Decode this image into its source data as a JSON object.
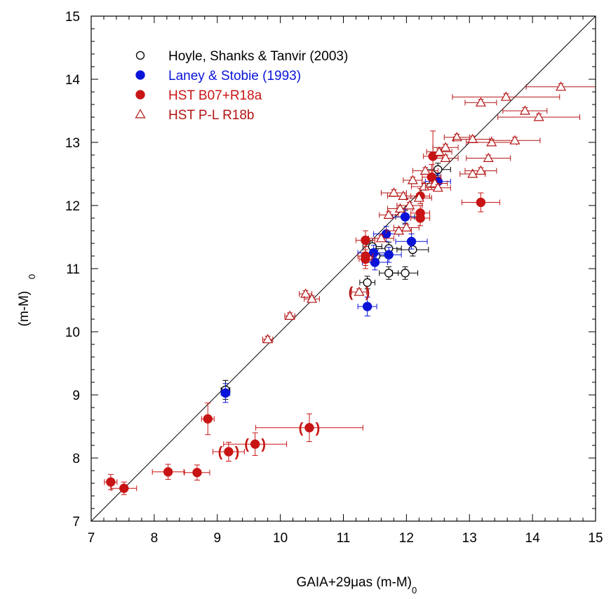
{
  "chart_data": {
    "type": "scatter",
    "title": "",
    "xlabel": "GAIA+29μas (m-M)",
    "xlabel_sub": "0",
    "ylabel": "(m-M)",
    "ylabel_sub": "0",
    "xlim": [
      7,
      15
    ],
    "ylim": [
      7,
      15
    ],
    "xticks": [
      "7",
      "8",
      "9",
      "10",
      "11",
      "12",
      "13",
      "14",
      "15"
    ],
    "yticks": [
      "7",
      "8",
      "9",
      "10",
      "11",
      "12",
      "13",
      "14",
      "15"
    ],
    "reference_line": "y = x",
    "grid": false,
    "legend_position": "top-left",
    "series": [
      {
        "name": "Hoyle, Shanks & Tanvir (2003)",
        "marker": "open-circle",
        "color": "#000000",
        "points": [
          {
            "x": 9.13,
            "y": 9.08,
            "xerr": 0.07,
            "yerr": 0.15
          },
          {
            "x": 11.38,
            "y": 10.78,
            "xerr": 0.12,
            "yerr": 0.1
          },
          {
            "x": 11.72,
            "y": 10.93,
            "xerr": 0.15,
            "yerr": 0.1
          },
          {
            "x": 11.98,
            "y": 10.93,
            "xerr": 0.2,
            "yerr": 0.1
          },
          {
            "x": 12.1,
            "y": 11.3,
            "xerr": 0.25,
            "yerr": 0.1
          },
          {
            "x": 11.72,
            "y": 11.32,
            "xerr": 0.2,
            "yerr": 0.1
          },
          {
            "x": 11.52,
            "y": 11.2,
            "xerr": 0.2,
            "yerr": 0.1
          },
          {
            "x": 11.46,
            "y": 11.35,
            "xerr": 0.15,
            "yerr": 0.1
          },
          {
            "x": 11.98,
            "y": 11.82,
            "xerr": 0.15,
            "yerr": 0.1
          },
          {
            "x": 12.5,
            "y": 12.57,
            "xerr": 0.2,
            "yerr": 0.1
          }
        ]
      },
      {
        "name": "Laney & Stobie (1993)",
        "marker": "filled-circle",
        "color": "#0a14d8",
        "points": [
          {
            "x": 9.13,
            "y": 9.03,
            "xerr": 0.07,
            "yerr": 0.15
          },
          {
            "x": 11.38,
            "y": 10.4,
            "xerr": 0.15,
            "yerr": 0.15
          },
          {
            "x": 11.5,
            "y": 11.1,
            "xerr": 0.2,
            "yerr": 0.12
          },
          {
            "x": 11.48,
            "y": 11.25,
            "xerr": 0.25,
            "yerr": 0.12
          },
          {
            "x": 11.72,
            "y": 11.22,
            "xerr": 0.2,
            "yerr": 0.12
          },
          {
            "x": 11.68,
            "y": 11.55,
            "xerr": 0.2,
            "yerr": 0.12
          },
          {
            "x": 11.98,
            "y": 11.82,
            "xerr": 0.2,
            "yerr": 0.12
          },
          {
            "x": 12.08,
            "y": 11.43,
            "xerr": 0.25,
            "yerr": 0.12
          },
          {
            "x": 12.5,
            "y": 12.38,
            "xerr": 0.2,
            "yerr": 0.12
          }
        ]
      },
      {
        "name": "HST B07+R18a",
        "marker": "filled-circle",
        "color": "#c81414",
        "points": [
          {
            "x": 7.31,
            "y": 7.62,
            "xerr": 0.1,
            "yerr": 0.12,
            "parenthesized": false
          },
          {
            "x": 7.52,
            "y": 7.52,
            "xerr": 0.2,
            "yerr": 0.1,
            "parenthesized": false
          },
          {
            "x": 8.22,
            "y": 7.78,
            "xerr": 0.25,
            "yerr": 0.12,
            "parenthesized": false
          },
          {
            "x": 8.68,
            "y": 7.77,
            "xerr": 0.2,
            "yerr": 0.12,
            "parenthesized": false
          },
          {
            "x": 8.85,
            "y": 8.62,
            "xerr": 0.1,
            "yerr": 0.25,
            "parenthesized": false
          },
          {
            "x": 9.18,
            "y": 8.1,
            "xerr": 0.25,
            "yerr": 0.15,
            "parenthesized": true
          },
          {
            "x": 9.6,
            "y": 8.22,
            "xerr": 0.5,
            "yerr": 0.18,
            "parenthesized": true
          },
          {
            "x": 10.46,
            "y": 8.48,
            "xerr": 0.85,
            "yerr": 0.22,
            "parenthesized": true
          },
          {
            "x": 11.35,
            "y": 11.45,
            "xerr": 0.15,
            "yerr": 0.15,
            "parenthesized": false
          },
          {
            "x": 11.35,
            "y": 11.2,
            "xerr": 0.12,
            "yerr": 0.15,
            "parenthesized": false
          },
          {
            "x": 11.35,
            "y": 11.15,
            "xerr": 0.1,
            "yerr": 0.15,
            "parenthesized": false
          },
          {
            "x": 12.22,
            "y": 11.8,
            "xerr": 0.15,
            "yerr": 0.12,
            "parenthesized": false
          },
          {
            "x": 12.22,
            "y": 11.88,
            "xerr": 0.15,
            "yerr": 0.12,
            "parenthesized": false
          },
          {
            "x": 12.22,
            "y": 12.15,
            "xerr": 0.15,
            "yerr": 0.12,
            "parenthesized": false
          },
          {
            "x": 12.4,
            "y": 12.45,
            "xerr": 0.15,
            "yerr": 0.2,
            "parenthesized": false
          },
          {
            "x": 12.42,
            "y": 12.78,
            "xerr": 0.15,
            "yerr": 0.4,
            "parenthesized": false
          },
          {
            "x": 13.18,
            "y": 12.05,
            "xerr": 0.3,
            "yerr": 0.15,
            "parenthesized": false
          }
        ]
      },
      {
        "name": "HST P-L R18b",
        "marker": "open-triangle",
        "color": "#b41414",
        "points": [
          {
            "x": 9.8,
            "y": 9.88,
            "xerr": 0.08,
            "yerr": 0.05,
            "parenthesized": false
          },
          {
            "x": 10.15,
            "y": 10.25,
            "xerr": 0.08,
            "yerr": 0.05,
            "parenthesized": false
          },
          {
            "x": 10.4,
            "y": 10.6,
            "xerr": 0.1,
            "yerr": 0.05,
            "parenthesized": false
          },
          {
            "x": 10.5,
            "y": 10.52,
            "xerr": 0.12,
            "yerr": 0.05,
            "parenthesized": false
          },
          {
            "x": 11.25,
            "y": 10.63,
            "xerr": 0.12,
            "yerr": 0.05,
            "parenthesized": true
          },
          {
            "x": 11.6,
            "y": 11.48,
            "xerr": 0.2,
            "yerr": 0.05,
            "parenthesized": false
          },
          {
            "x": 11.72,
            "y": 11.85,
            "xerr": 0.15,
            "yerr": 0.05,
            "parenthesized": false
          },
          {
            "x": 11.8,
            "y": 12.2,
            "xerr": 0.2,
            "yerr": 0.05,
            "parenthesized": false
          },
          {
            "x": 11.88,
            "y": 11.6,
            "xerr": 0.2,
            "yerr": 0.05,
            "parenthesized": false
          },
          {
            "x": 11.9,
            "y": 11.95,
            "xerr": 0.2,
            "yerr": 0.05,
            "parenthesized": false
          },
          {
            "x": 11.95,
            "y": 12.15,
            "xerr": 0.25,
            "yerr": 0.05,
            "parenthesized": false
          },
          {
            "x": 12.0,
            "y": 11.65,
            "xerr": 0.2,
            "yerr": 0.05,
            "parenthesized": false
          },
          {
            "x": 12.05,
            "y": 12.0,
            "xerr": 0.2,
            "yerr": 0.05,
            "parenthesized": false
          },
          {
            "x": 12.1,
            "y": 12.4,
            "xerr": 0.15,
            "yerr": 0.05,
            "parenthesized": false
          },
          {
            "x": 12.2,
            "y": 12.12,
            "xerr": 0.2,
            "yerr": 0.05,
            "parenthesized": false
          },
          {
            "x": 12.28,
            "y": 12.3,
            "xerr": 0.2,
            "yerr": 0.05,
            "parenthesized": false
          },
          {
            "x": 12.3,
            "y": 12.55,
            "xerr": 0.2,
            "yerr": 0.05,
            "parenthesized": false
          },
          {
            "x": 12.45,
            "y": 12.35,
            "xerr": 0.2,
            "yerr": 0.05,
            "parenthesized": false
          },
          {
            "x": 12.5,
            "y": 12.28,
            "xerr": 0.2,
            "yerr": 0.05,
            "parenthesized": false
          },
          {
            "x": 12.52,
            "y": 12.85,
            "xerr": 0.2,
            "yerr": 0.05,
            "parenthesized": false
          },
          {
            "x": 12.62,
            "y": 12.75,
            "xerr": 0.2,
            "yerr": 0.05,
            "parenthesized": false
          },
          {
            "x": 12.62,
            "y": 12.92,
            "xerr": 0.2,
            "yerr": 0.05,
            "parenthesized": false
          },
          {
            "x": 12.8,
            "y": 13.08,
            "xerr": 0.2,
            "yerr": 0.05,
            "parenthesized": false
          },
          {
            "x": 13.05,
            "y": 12.5,
            "xerr": 0.2,
            "yerr": 0.05,
            "parenthesized": false
          },
          {
            "x": 13.05,
            "y": 13.05,
            "xerr": 0.3,
            "yerr": 0.05,
            "parenthesized": false
          },
          {
            "x": 13.18,
            "y": 12.55,
            "xerr": 0.25,
            "yerr": 0.05,
            "parenthesized": false
          },
          {
            "x": 13.18,
            "y": 13.63,
            "xerr": 0.25,
            "yerr": 0.05,
            "parenthesized": false
          },
          {
            "x": 13.3,
            "y": 12.75,
            "xerr": 0.35,
            "yerr": 0.05,
            "parenthesized": false
          },
          {
            "x": 13.35,
            "y": 13.0,
            "xerr": 0.4,
            "yerr": 0.05,
            "parenthesized": false
          },
          {
            "x": 13.58,
            "y": 13.72,
            "xerr": 0.85,
            "yerr": 0.05,
            "parenthesized": false
          },
          {
            "x": 13.72,
            "y": 13.03,
            "xerr": 0.4,
            "yerr": 0.05,
            "parenthesized": false
          },
          {
            "x": 13.88,
            "y": 13.5,
            "xerr": 0.35,
            "yerr": 0.05,
            "parenthesized": false
          },
          {
            "x": 14.1,
            "y": 13.4,
            "xerr": 0.65,
            "yerr": 0.05,
            "parenthesized": false
          },
          {
            "x": 14.45,
            "y": 13.88,
            "xerr": 0.55,
            "yerr": 0.05,
            "parenthesized": false
          }
        ]
      }
    ]
  }
}
